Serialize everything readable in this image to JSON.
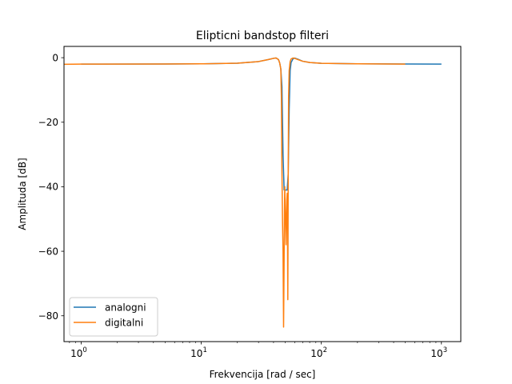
{
  "chart_data": {
    "type": "line",
    "title": "Elipticni bandstop filteri",
    "xlabel": "Frekvencija [rad / sec]",
    "ylabel": "Amplituda [dB]",
    "xscale": "log",
    "xlim": [
      0.72,
      1450
    ],
    "ylim": [
      -88,
      3.5
    ],
    "xticks": [
      {
        "value": 1,
        "base": "10",
        "exp": "0"
      },
      {
        "value": 10,
        "base": "10",
        "exp": "1"
      },
      {
        "value": 100,
        "base": "10",
        "exp": "2"
      },
      {
        "value": 1000,
        "base": "10",
        "exp": "3"
      }
    ],
    "yticks": [
      {
        "value": 0,
        "label": "0"
      },
      {
        "value": -20,
        "label": "−20"
      },
      {
        "value": -40,
        "label": "−40"
      },
      {
        "value": -60,
        "label": "−60"
      },
      {
        "value": -80,
        "label": "−80"
      }
    ],
    "grid": false,
    "legend": "lower-left",
    "series": [
      {
        "name": "analogni",
        "color": "#1f77b4",
        "x": [
          1,
          5,
          10,
          20,
          30,
          36,
          40,
          42,
          44,
          45,
          46,
          47,
          48,
          49,
          50,
          52,
          53,
          54,
          55,
          56,
          58,
          60,
          64,
          70,
          80,
          100,
          200,
          500,
          1000
        ],
        "y": [
          -2,
          -1.95,
          -1.9,
          -1.7,
          -1.2,
          -0.6,
          -0.2,
          -0.1,
          -0.6,
          -1.6,
          -3.5,
          -9,
          -30,
          -41,
          -41,
          -41,
          -36,
          -16,
          -4,
          -1.5,
          -0.4,
          -0.1,
          -0.5,
          -1.1,
          -1.5,
          -1.75,
          -1.9,
          -1.95,
          -2
        ]
      },
      {
        "name": "digitalni",
        "color": "#ff7f0e",
        "x": [
          0.72,
          1,
          5,
          10,
          20,
          30,
          36,
          40,
          42,
          44,
          45,
          46,
          46.5,
          47,
          47.5,
          48,
          48.5,
          49,
          49.3,
          49.6,
          50,
          50.4,
          50.8,
          51.2,
          51.6,
          52,
          52.3,
          52.6,
          53,
          53.4,
          54,
          55,
          56,
          58,
          60,
          64,
          70,
          80,
          100,
          200,
          500
        ],
        "y": [
          -2.05,
          -2,
          -1.95,
          -1.9,
          -1.7,
          -1.2,
          -0.6,
          -0.2,
          -0.1,
          -0.6,
          -1.6,
          -3.5,
          -12,
          -35,
          -50,
          -60,
          -83.5,
          -62,
          -48,
          -40,
          -46,
          -52,
          -58,
          -50,
          -44,
          -42,
          -55,
          -75,
          -38,
          -12,
          -4,
          -1.2,
          -0.4,
          -0.1,
          -0.2,
          -0.6,
          -1.1,
          -1.5,
          -1.75,
          -1.9,
          -2
        ]
      }
    ]
  }
}
